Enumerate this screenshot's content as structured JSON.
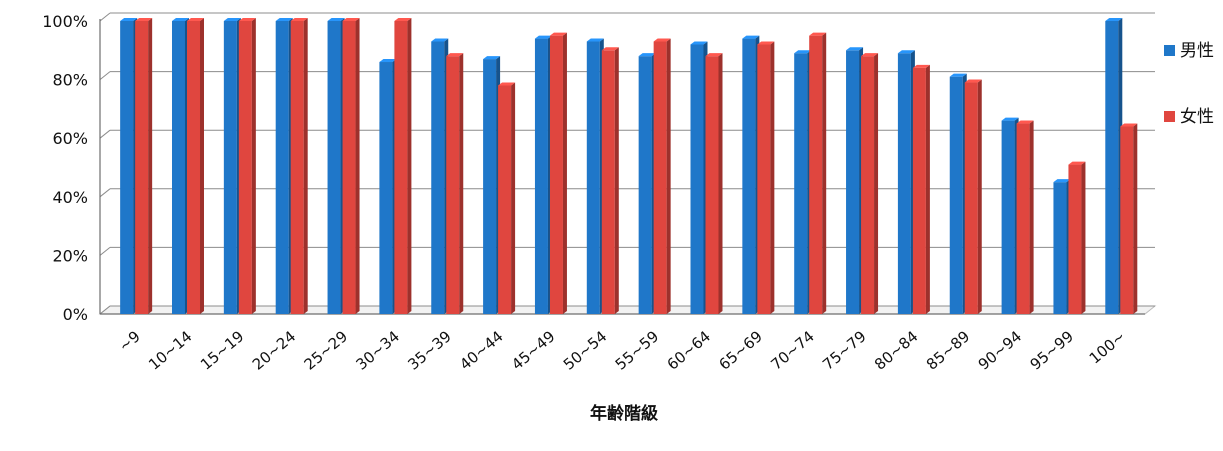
{
  "chart_data": {
    "type": "bar",
    "xlabel": "年齢階級",
    "ylabel": "",
    "ylim": [
      0,
      1
    ],
    "yticks": [
      "0%",
      "20%",
      "40%",
      "60%",
      "80%",
      "100%"
    ],
    "grid": true,
    "legend_position": "right",
    "categories": [
      "~9",
      "10~14",
      "15~19",
      "20~24",
      "25~29",
      "30~34",
      "35~39",
      "40~44",
      "45~49",
      "50~54",
      "55~59",
      "60~64",
      "65~69",
      "70~74",
      "75~79",
      "80~84",
      "85~89",
      "90~94",
      "95~99",
      "100~"
    ],
    "series": [
      {
        "name": "男性",
        "color": "#1f77c9",
        "values": [
          1.0,
          1.0,
          1.0,
          1.0,
          1.0,
          0.86,
          0.93,
          0.87,
          0.94,
          0.93,
          0.88,
          0.92,
          0.94,
          0.89,
          0.9,
          0.89,
          0.81,
          0.66,
          0.45,
          1.0
        ]
      },
      {
        "name": "女性",
        "color": "#e0463f",
        "values": [
          1.0,
          1.0,
          1.0,
          1.0,
          1.0,
          1.0,
          0.88,
          0.78,
          0.95,
          0.9,
          0.93,
          0.88,
          0.92,
          0.95,
          0.88,
          0.84,
          0.79,
          0.65,
          0.51,
          0.64
        ]
      }
    ]
  }
}
